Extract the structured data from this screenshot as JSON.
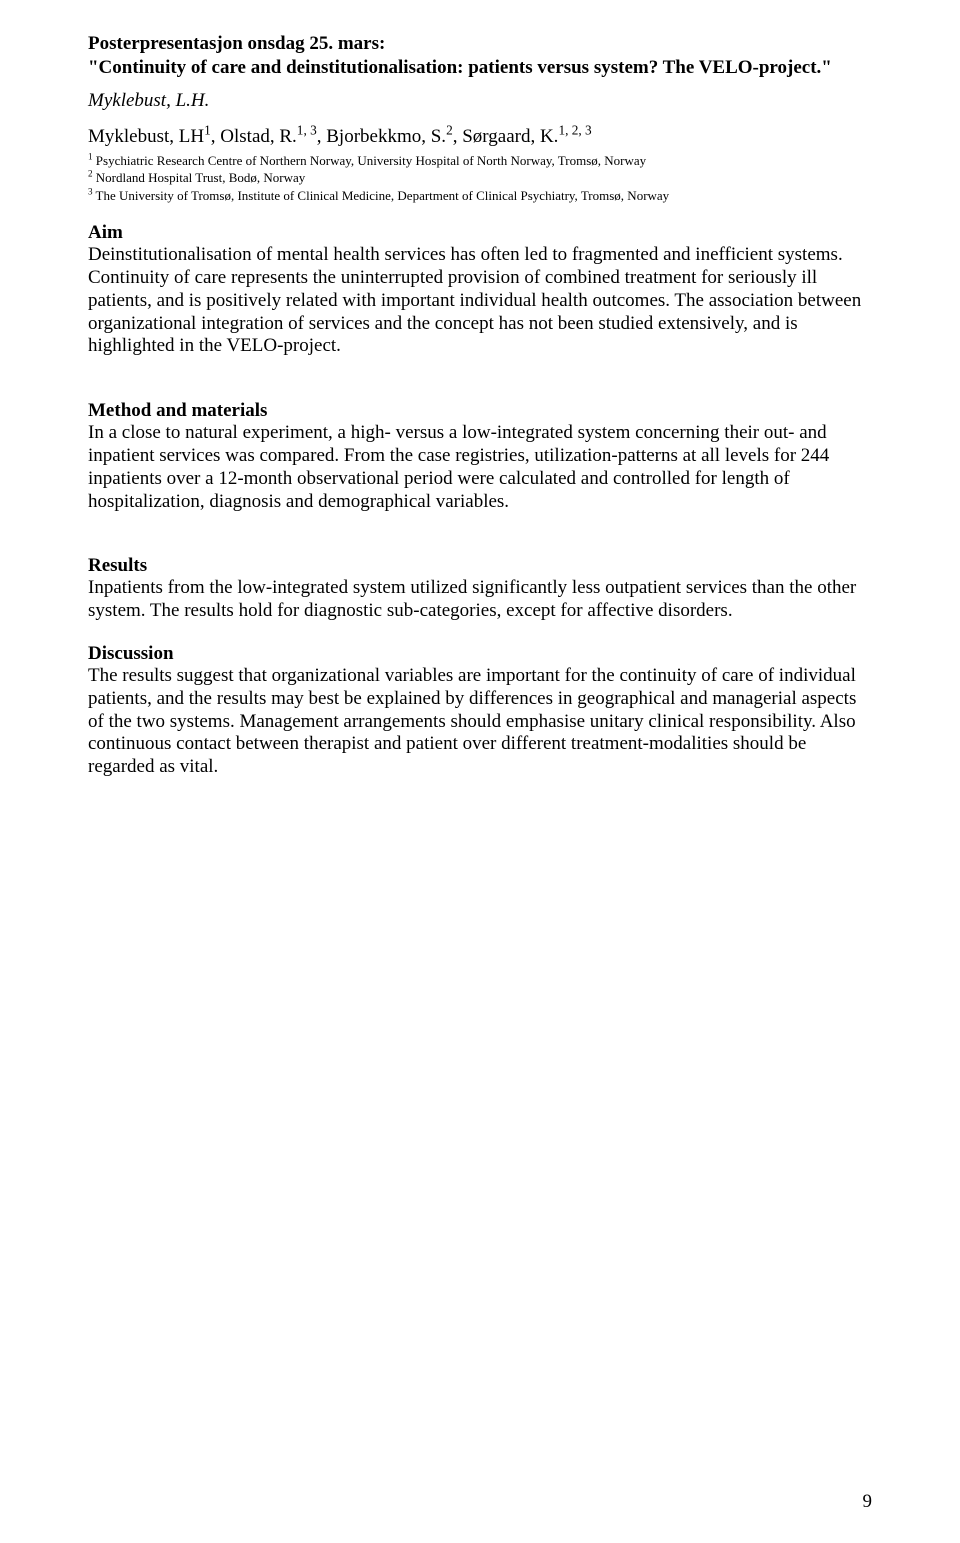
{
  "header": {
    "line1": "Posterpresentasjon onsdag 25. mars:",
    "line2": "\"Continuity of care and deinstitutionalisation: patients versus system? The VELO-project.\""
  },
  "author_italic": "Myklebust, L.H.",
  "author_affil_parts": {
    "p1": "Myklebust, LH",
    "s1": "1",
    "p2": ", Olstad, R.",
    "s2": "1, 3",
    "p3": ", Bjorbekkmo, S.",
    "s3": "2",
    "p4": ", Sørgaard, K.",
    "s4": "1, 2, 3"
  },
  "affiliations": {
    "a1_sup": "1",
    "a1": " Psychiatric Research Centre of Northern Norway, University Hospital of North Norway, Tromsø, Norway",
    "a2_sup": "2",
    "a2": " Nordland Hospital Trust, Bodø, Norway",
    "a3_sup": "3",
    "a3": " The University of Tromsø, Institute of Clinical Medicine, Department of Clinical Psychiatry, Tromsø, Norway"
  },
  "sections": {
    "aim_heading": "Aim",
    "aim_body": "Deinstitutionalisation of mental health services has often led to fragmented and inefficient systems. Continuity of care represents the uninterrupted provision of combined treatment for seriously ill patients, and is positively related with important individual health outcomes. The association between organizational integration of services and the concept has not been studied extensively, and is highlighted in the VELO-project.",
    "method_heading": "Method and materials",
    "method_body": "In a close to natural experiment, a high- versus a low-integrated system concerning their out- and inpatient services was compared. From the case registries, utilization-patterns at all levels for 244 inpatients over a 12-month observational period were calculated and controlled for length of hospitalization, diagnosis and demographical variables.",
    "results_heading": "Results",
    "results_body": "Inpatients from the low-integrated system utilized significantly less outpatient services than the other system. The results hold for diagnostic sub-categories, except for affective disorders.",
    "discussion_heading": "Discussion",
    "discussion_body": "The results suggest that organizational variables are important for the continuity of care of individual patients, and the results may best be explained by differences in geographical and managerial aspects of the two systems. Management arrangements should emphasise unitary clinical responsibility. Also continuous contact between therapist and patient over different treatment-modalities should be regarded as vital."
  },
  "page_number": "9"
}
